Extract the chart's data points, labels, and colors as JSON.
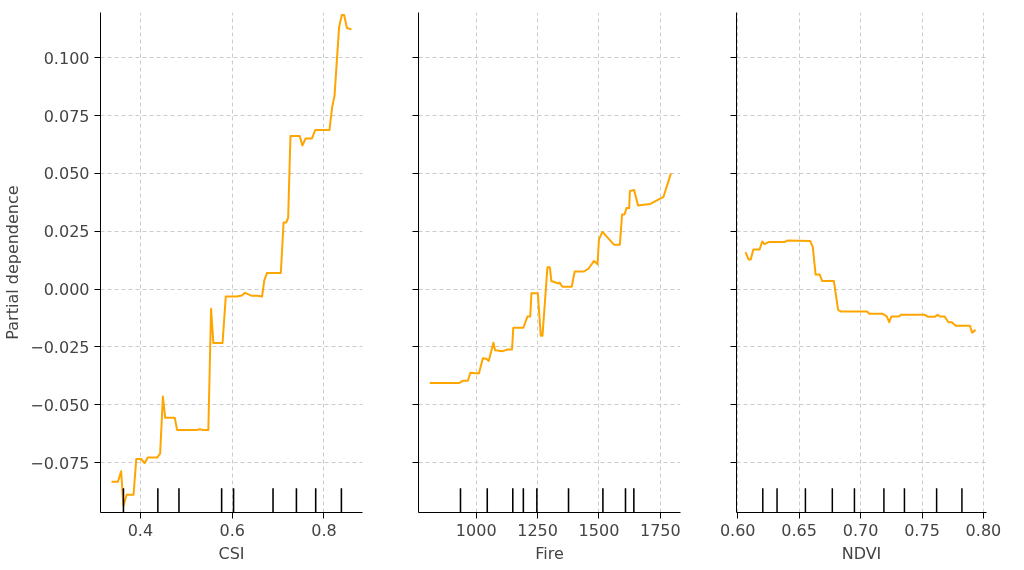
{
  "chart_data": [
    {
      "type": "line",
      "xlabel": "CSI",
      "ylabel": "Partial dependence",
      "grid": true,
      "line_style": "solid",
      "xlim": [
        0.313,
        0.884
      ],
      "xticks": [
        {
          "value": 0.4,
          "label": "0.4"
        },
        {
          "value": 0.6,
          "label": "0.6"
        },
        {
          "value": 0.8,
          "label": "0.8"
        }
      ],
      "ylim": [
        -0.0965,
        0.1195
      ],
      "yticks": [
        {
          "value": -0.075,
          "label": "−0.075"
        },
        {
          "value": -0.05,
          "label": "−0.050"
        },
        {
          "value": -0.025,
          "label": "−0.025"
        },
        {
          "value": 0,
          "label": "0.000"
        },
        {
          "value": 0.025,
          "label": "0.025"
        },
        {
          "value": 0.05,
          "label": "0.050"
        },
        {
          "value": 0.075,
          "label": "0.075"
        },
        {
          "value": 0.1,
          "label": "0.100"
        }
      ],
      "series": [
        {
          "color": "#ffa500",
          "x": [
            0.337,
            0.351,
            0.358,
            0.363,
            0.37,
            0.385,
            0.391,
            0.402,
            0.409,
            0.416,
            0.437,
            0.443,
            0.449,
            0.454,
            0.475,
            0.48,
            0.522,
            0.529,
            0.537,
            0.548,
            0.554,
            0.559,
            0.579,
            0.586,
            0.61,
            0.621,
            0.628,
            0.643,
            0.655,
            0.665,
            0.67,
            0.676,
            0.706,
            0.712,
            0.718,
            0.722,
            0.727,
            0.747,
            0.753,
            0.76,
            0.774,
            0.781,
            0.812,
            0.818,
            0.823,
            0.833,
            0.839,
            0.844,
            0.85,
            0.86
          ],
          "values": [
            -0.0832,
            -0.0832,
            -0.0787,
            -0.0937,
            -0.0888,
            -0.0888,
            -0.0734,
            -0.0734,
            -0.0752,
            -0.0727,
            -0.0727,
            -0.071,
            -0.0464,
            -0.0556,
            -0.0556,
            -0.0609,
            -0.0609,
            -0.0605,
            -0.0609,
            -0.0609,
            -0.0085,
            -0.0233,
            -0.0233,
            -0.0032,
            -0.0032,
            -0.0028,
            -0.0016,
            -0.0029,
            -0.0029,
            -0.0032,
            0.0038,
            0.007,
            0.007,
            0.0288,
            0.0288,
            0.0309,
            0.0662,
            0.0662,
            0.062,
            0.0651,
            0.0651,
            0.0687,
            0.0687,
            0.0788,
            0.0835,
            0.1132,
            0.1184,
            0.1184,
            0.1128,
            0.1122
          ]
        },
        {
          "type": "bar",
          "color": "#000000",
          "x": [
            0.363,
            0.438,
            0.484,
            0.577,
            0.603,
            0.689,
            0.74,
            0.782,
            0.838
          ],
          "base": [
            -0.0965,
            -0.0965,
            -0.0965,
            -0.0965,
            -0.0965,
            -0.0965,
            -0.0965,
            -0.0965,
            -0.0965
          ],
          "values": [
            0.0105,
            0.0105,
            0.0105,
            0.0105,
            0.0105,
            0.0105,
            0.0105,
            0.0105,
            0.0105
          ]
        }
      ]
    },
    {
      "type": "line",
      "xlabel": "Fire",
      "grid": true,
      "line_style": "solid",
      "tick_labels": "x",
      "xlim": [
        765,
        1832
      ],
      "xticks": [
        1000,
        1250,
        1500,
        1750
      ],
      "ylim": [
        -0.0965,
        0.1195
      ],
      "yticks": [
        -0.075,
        -0.05,
        -0.025,
        0,
        0.025,
        0.05,
        0.075,
        0.1
      ],
      "series": [
        {
          "color": "#ffa500",
          "x": [
            811,
            930,
            946,
            966,
            976,
            1011,
            1027,
            1041,
            1051,
            1070,
            1077,
            1108,
            1128,
            1146,
            1151,
            1192,
            1209,
            1220,
            1225,
            1251,
            1263,
            1270,
            1290,
            1300,
            1306,
            1335,
            1340,
            1351,
            1389,
            1401,
            1439,
            1457,
            1480,
            1494,
            1500,
            1514,
            1561,
            1585,
            1594,
            1604,
            1612,
            1623,
            1626,
            1643,
            1659,
            1682,
            1709,
            1763,
            1793
          ],
          "values": [
            -0.0406,
            -0.0406,
            -0.0396,
            -0.0396,
            -0.0361,
            -0.0364,
            -0.0299,
            -0.0301,
            -0.031,
            -0.0232,
            -0.0264,
            -0.0268,
            -0.0261,
            -0.0261,
            -0.0167,
            -0.0167,
            -0.0118,
            -0.0118,
            -0.0018,
            -0.0018,
            -0.0201,
            -0.0201,
            0.0094,
            0.0094,
            0.0035,
            0.0024,
            0.0028,
            0.001,
            0.001,
            0.0076,
            0.0076,
            0.0088,
            0.0122,
            0.0107,
            0.0215,
            0.0247,
            0.0192,
            0.0192,
            0.0322,
            0.0322,
            0.035,
            0.035,
            0.0424,
            0.0428,
            0.0361,
            0.0364,
            0.0368,
            0.0399,
            0.05
          ]
        },
        {
          "type": "bar",
          "color": "#000000",
          "x": [
            936,
            1045,
            1149,
            1192,
            1247,
            1376,
            1516,
            1608,
            1642
          ],
          "base": [
            -0.0965,
            -0.0965,
            -0.0965,
            -0.0965,
            -0.0965,
            -0.0965,
            -0.0965,
            -0.0965,
            -0.0965
          ],
          "values": [
            0.0105,
            0.0105,
            0.0105,
            0.0105,
            0.0105,
            0.0105,
            0.0105,
            0.0105,
            0.0105
          ]
        }
      ]
    },
    {
      "type": "line",
      "xlabel": "NDVI",
      "grid": true,
      "line_style": "solid",
      "tick_labels": "x",
      "xlim": [
        0.599,
        0.8025
      ],
      "xticks": [
        {
          "value": 0.6,
          "label": "0.60"
        },
        {
          "value": 0.65,
          "label": "0.65"
        },
        {
          "value": 0.7,
          "label": "0.70"
        },
        {
          "value": 0.75,
          "label": "0.75"
        },
        {
          "value": 0.8,
          "label": "0.80"
        }
      ],
      "ylim": [
        -0.0965,
        0.1195
      ],
      "yticks": [
        -0.075,
        -0.05,
        -0.025,
        0,
        0.025,
        0.05,
        0.075,
        0.1
      ],
      "series": [
        {
          "color": "#ffa500",
          "x": [
            0.6063,
            0.6089,
            0.6106,
            0.6127,
            0.6178,
            0.6199,
            0.6217,
            0.6256,
            0.6384,
            0.6405,
            0.659,
            0.6611,
            0.6634,
            0.6667,
            0.6688,
            0.6783,
            0.6817,
            0.6842,
            0.7053,
            0.7071,
            0.7177,
            0.7213,
            0.7233,
            0.7251,
            0.7311,
            0.7329,
            0.7524,
            0.7547,
            0.7606,
            0.7627,
            0.7645,
            0.7684,
            0.7715,
            0.7743,
            0.7774,
            0.789,
            0.7908,
            0.7936
          ],
          "values": [
            0.016,
            0.0128,
            0.0128,
            0.0171,
            0.0171,
            0.0206,
            0.0194,
            0.0204,
            0.0204,
            0.021,
            0.0208,
            0.0181,
            0.0063,
            0.0063,
            0.0035,
            0.0035,
            -0.009,
            -0.0097,
            -0.0097,
            -0.0106,
            -0.0106,
            -0.0118,
            -0.0143,
            -0.0118,
            -0.0118,
            -0.0111,
            -0.0111,
            -0.0119,
            -0.0119,
            -0.0111,
            -0.0118,
            -0.0118,
            -0.0143,
            -0.0143,
            -0.0158,
            -0.0158,
            -0.0188,
            -0.0176
          ]
        },
        {
          "type": "bar",
          "color": "#000000",
          "x": [
            0.6204,
            0.632,
            0.6551,
            0.677,
            0.695,
            0.719,
            0.7357,
            0.7619,
            0.7825
          ],
          "base": [
            -0.0965,
            -0.0965,
            -0.0965,
            -0.0965,
            -0.0965,
            -0.0965,
            -0.0965,
            -0.0965,
            -0.0965
          ],
          "values": [
            0.0105,
            0.0105,
            0.0105,
            0.0105,
            0.0105,
            0.0105,
            0.0105,
            0.0105,
            0.0105
          ]
        }
      ]
    }
  ]
}
